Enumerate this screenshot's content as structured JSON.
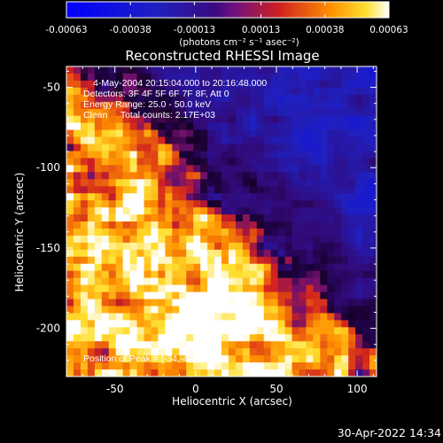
{
  "chart_data": {
    "type": "heatmap",
    "title": "Reconstructed RHESSI Image",
    "xlabel": "Heliocentric X (arcsec)",
    "ylabel": "Heliocentric Y (arcsec)",
    "xlim": [
      -80,
      112
    ],
    "ylim": [
      -230,
      -37
    ],
    "x_ticks": [
      "-50",
      "0",
      "50",
      "100"
    ],
    "x_tick_values": [
      -50,
      0,
      50,
      100
    ],
    "y_ticks": [
      "-50",
      "-100",
      "-150",
      "-200"
    ],
    "y_tick_values": [
      -50,
      -100,
      -150,
      -200
    ],
    "colorbar": {
      "ticks": [
        "-0.00063",
        "-0.00038",
        "-0.00013",
        "0.00013",
        "0.00038",
        "0.00063"
      ],
      "tick_values": [
        -0.00063,
        -0.00038,
        -0.00013,
        0.00013,
        0.00038,
        0.00063
      ],
      "range": [
        -0.00063,
        0.00063
      ],
      "unit_label": "(photons cm⁻² s⁻¹ asec⁻²)",
      "colormap": "rhessi-blue-purple-red-yellow-white"
    },
    "annotations": [
      "4-May-2004 20:15:04.000 to 20:16:48.000",
      "Detectors: 3F 4F 5F 6F 7F 8F, Att 0",
      "Energy Range: 25.0 - 50.0 keV",
      "Clean     Total counts: 2.17E+03",
      "Position of Peak = [-34,-42]"
    ],
    "peak_position": [
      -34,
      -42
    ],
    "grid": false,
    "legend": "none"
  },
  "footer": {
    "timestamp": "30-Apr-2022 14:34"
  }
}
